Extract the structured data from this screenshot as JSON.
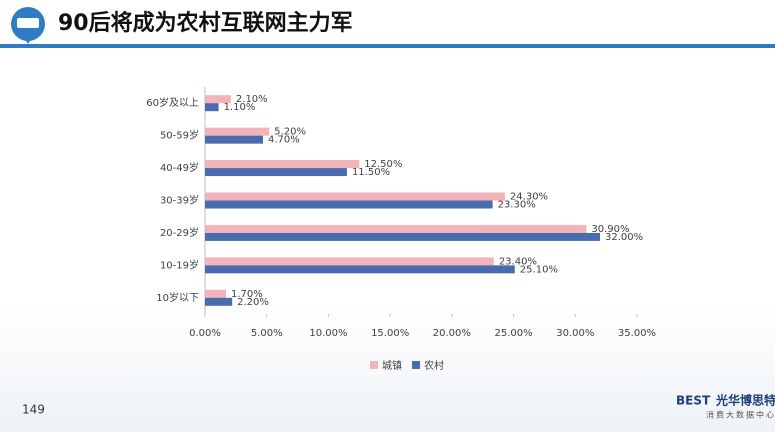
{
  "slide": {
    "title": "90后将成为农村互联网主力军",
    "page_number": "149",
    "logo_mark": "BEST",
    "logo_name": "光华博思特",
    "logo_sub": "消费大数据中心"
  },
  "chart_data": {
    "type": "hbar",
    "categories": [
      "60岁及以上",
      "50-59岁",
      "40-49岁",
      "30-39岁",
      "20-29岁",
      "10-19岁",
      "10岁以下"
    ],
    "series": [
      {
        "name": "城镇",
        "color": "#f2b3ba",
        "values": [
          2.1,
          5.2,
          12.5,
          24.3,
          30.9,
          23.4,
          1.7
        ],
        "value_labels": [
          "2.10%",
          "5.20%",
          "12.50%",
          "24.30%",
          "30.90%",
          "23.40%",
          "1.70%"
        ]
      },
      {
        "name": "农村",
        "color": "#4a6cae",
        "values": [
          1.1,
          4.7,
          11.5,
          23.3,
          32.0,
          25.1,
          2.2
        ],
        "value_labels": [
          "1.10%",
          "4.70%",
          "11.50%",
          "23.30%",
          "32.00%",
          "25.10%",
          "2.20%"
        ]
      }
    ],
    "xlim": [
      0,
      35
    ],
    "xticks": [
      {
        "value": 0,
        "label": "0.00%"
      },
      {
        "value": 5,
        "label": "5.00%"
      },
      {
        "value": 10,
        "label": "10.00%"
      },
      {
        "value": 15,
        "label": "15.00%"
      },
      {
        "value": 20,
        "label": "20.00%"
      },
      {
        "value": 25,
        "label": "25.00%"
      },
      {
        "value": 30,
        "label": "30.00%"
      },
      {
        "value": 35,
        "label": "35.00%"
      }
    ],
    "legend": "bottom"
  }
}
